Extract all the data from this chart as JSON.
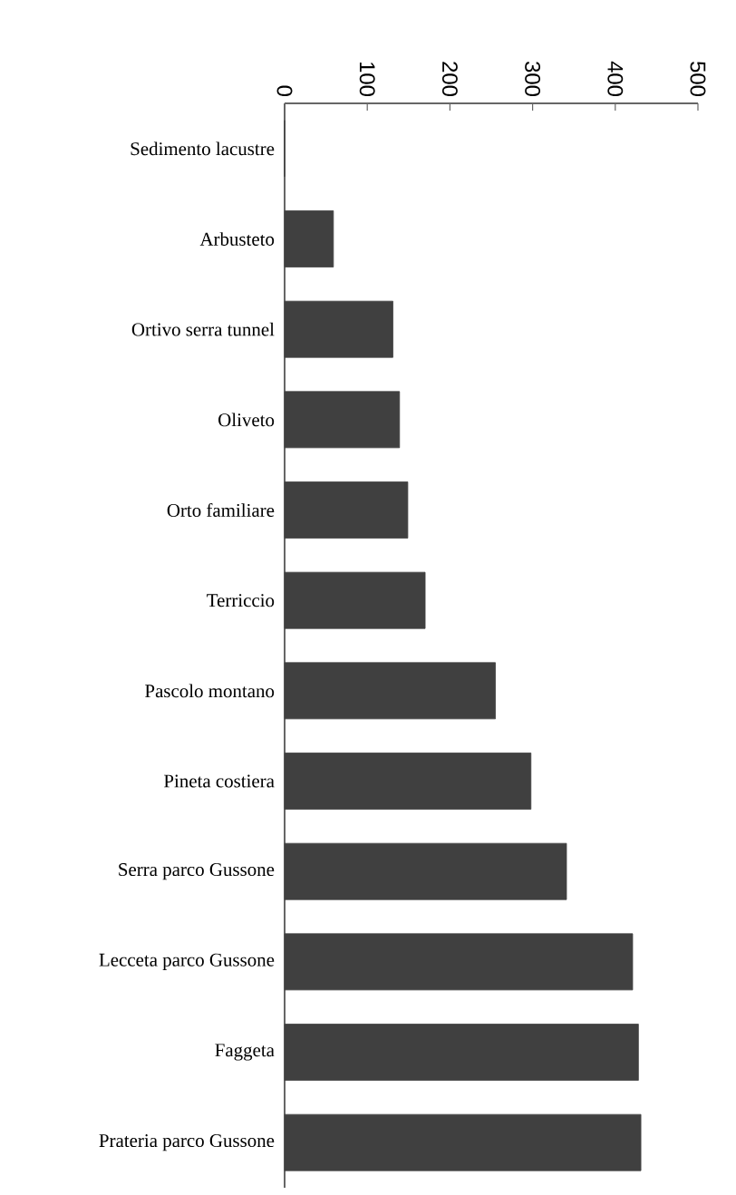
{
  "chart_data": {
    "type": "bar",
    "orientation": "horizontal",
    "categories": [
      "Sedimento lacustre",
      "Arbusteto",
      "Ortivo serra tunnel",
      "Oliveto",
      "Orto familiare",
      "Terriccio",
      "Pascolo montano",
      "Pineta costiera",
      "Serra parco Gussone",
      "Lecceta parco Gussone",
      "Faggeta",
      "Prateria parco Gussone"
    ],
    "values": [
      0,
      59,
      131,
      139,
      149,
      170,
      255,
      298,
      341,
      421,
      428,
      431
    ],
    "color": "#404040",
    "xlim": [
      0,
      500
    ],
    "xticks": [
      0,
      100,
      200,
      300,
      400,
      500
    ]
  }
}
